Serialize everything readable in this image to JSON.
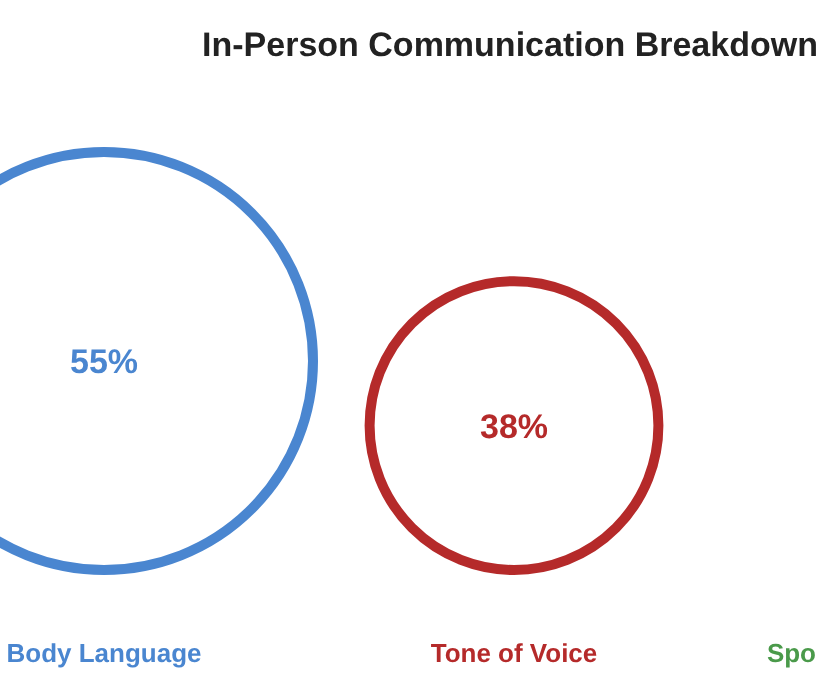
{
  "chart_data": {
    "type": "other",
    "title": "In-Person Communication Breakdown",
    "categories": [
      "Body Language",
      "Tone of Voice",
      "Spo"
    ],
    "values": [
      55,
      38,
      null
    ],
    "value_labels": [
      "55%",
      "38%",
      null
    ],
    "colors": [
      "#4a86d0",
      "#b52a2a",
      "#4a9a4a"
    ]
  }
}
